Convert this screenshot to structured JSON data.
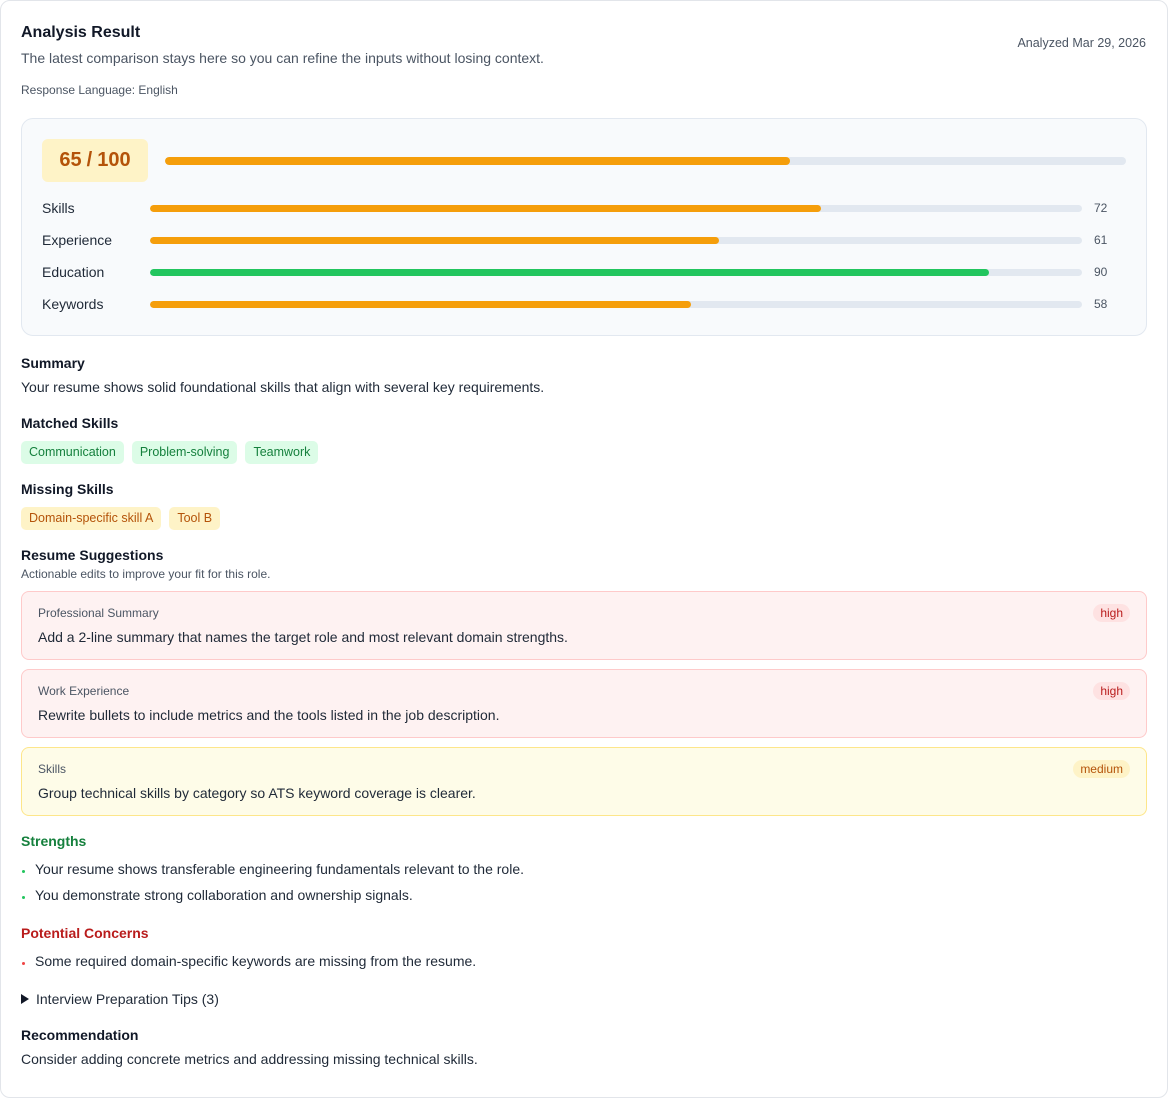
{
  "header": {
    "title": "Analysis Result",
    "subtitle": "The latest comparison stays here so you can refine the inputs without losing context.",
    "analyzed": "Analyzed Mar 29, 2026",
    "language": "Response Language: English"
  },
  "score": {
    "value": 65,
    "separator": "/",
    "max": 100,
    "color": "#f59e0b"
  },
  "subscores": [
    {
      "label": "Skills",
      "value": 72,
      "color": "#f59e0b"
    },
    {
      "label": "Experience",
      "value": 61,
      "color": "#f59e0b"
    },
    {
      "label": "Education",
      "value": 90,
      "color": "#22c55e"
    },
    {
      "label": "Keywords",
      "value": 58,
      "color": "#f59e0b"
    }
  ],
  "summary": {
    "heading": "Summary",
    "text": "Your resume shows solid foundational skills that align with several key requirements."
  },
  "matched_skills": {
    "heading": "Matched Skills",
    "items": [
      "Communication",
      "Problem-solving",
      "Teamwork"
    ]
  },
  "missing_skills": {
    "heading": "Missing Skills",
    "items": [
      "Domain-specific skill A",
      "Tool B"
    ]
  },
  "suggestions": {
    "heading": "Resume Suggestions",
    "subheading": "Actionable edits to improve your fit for this role.",
    "items": [
      {
        "section": "Professional Summary",
        "text": "Add a 2-line summary that names the target role and most relevant domain strengths.",
        "priority": "high"
      },
      {
        "section": "Work Experience",
        "text": "Rewrite bullets to include metrics and the tools listed in the job description.",
        "priority": "high"
      },
      {
        "section": "Skills",
        "text": "Group technical skills by category so ATS keyword coverage is clearer.",
        "priority": "medium"
      }
    ]
  },
  "strengths": {
    "heading": "Strengths",
    "items": [
      "Your resume shows transferable engineering fundamentals relevant to the role.",
      "You demonstrate strong collaboration and ownership signals."
    ]
  },
  "concerns": {
    "heading": "Potential Concerns",
    "items": [
      "Some required domain-specific keywords are missing from the resume."
    ]
  },
  "interview_tips": {
    "label": "Interview Preparation Tips (3)"
  },
  "recommendation": {
    "heading": "Recommendation",
    "text": "Consider adding concrete metrics and addressing missing technical skills."
  }
}
